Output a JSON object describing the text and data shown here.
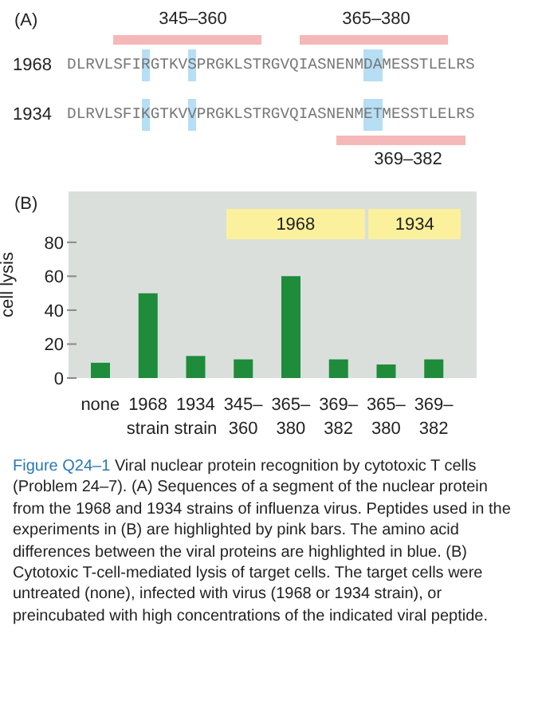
{
  "chart_data": {
    "type": "bar",
    "title": "Figure Q24–1",
    "subtitle": "Viral nuclear protein recognition by cytotoxic T cells (Problem 24–7). (A) Sequences of a segment of the nuclear protein from the 1968 and 1934 strains of influenza virus. Peptides used in the experiments in (B) are highlighted by pink bars. The amino acid differences between the viral proteins are highlighted in blue. (B) Cytotoxic T-cell-mediated lysis of target cells. The target cells were untreated (none), infected with virus (1968 or 1934 strain), or preincubated with high concentrations of the indicated viral peptide.",
    "ylabel": "cell lysis",
    "categories": [
      "none",
      "1968\nstrain",
      "1934\nstrain",
      "345–\n360",
      "365–\n380",
      "369–\n382",
      "365–\n380",
      "369–\n382"
    ],
    "values": [
      9,
      50,
      13,
      11,
      60,
      11,
      8,
      11
    ],
    "color": "#1e8c3a",
    "ylim": [
      0,
      110
    ],
    "yticks": [
      0,
      20,
      40,
      60,
      80
    ],
    "grid": false,
    "legend": false,
    "annotations": [
      "(A)",
      "345–360",
      "365–380",
      "1968",
      "DLRVLSFIRGTKVSPRGKLSTRGVQIASNENMDAMESSTLELRS",
      "1934",
      "DLRVLSFIKGTKVVPRGKLSTRGVQIASNENMETMESSTLELRS",
      "369–382",
      "(B)",
      "1968",
      "1934"
    ]
  }
}
